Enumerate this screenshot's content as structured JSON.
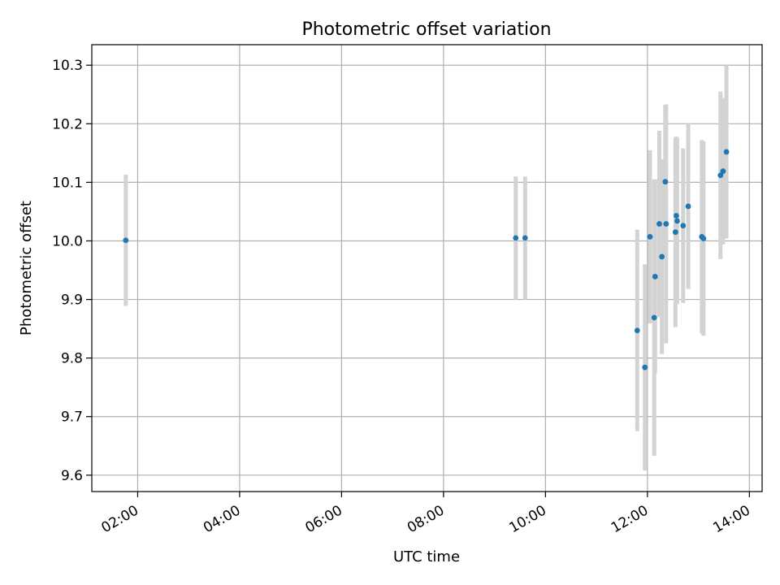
{
  "chart_data": {
    "type": "scatter",
    "title": "Photometric offset variation",
    "xlabel": "UTC time",
    "ylabel": "Photometric offset",
    "xlim": [
      "01:06",
      "14:15"
    ],
    "ylim": [
      9.572,
      10.335
    ],
    "x_ticks": [
      "02:00",
      "04:00",
      "06:00",
      "08:00",
      "10:00",
      "12:00",
      "14:00"
    ],
    "y_ticks": [
      "9.6",
      "9.7",
      "9.8",
      "9.9",
      "10.0",
      "10.1",
      "10.2",
      "10.3"
    ],
    "grid": true,
    "colors": {
      "points": "#1f77b4",
      "errorbars": "#d3d3d3",
      "grid": "#b0b0b0"
    },
    "points": [
      {
        "x": "01:46",
        "y": 10.001,
        "err": 0.112
      },
      {
        "x": "09:25",
        "y": 10.005,
        "err": 0.105
      },
      {
        "x": "09:36",
        "y": 10.005,
        "err": 0.105
      },
      {
        "x": "11:48",
        "y": 9.847,
        "err": 0.172
      },
      {
        "x": "11:57",
        "y": 9.784,
        "err": 0.176
      },
      {
        "x": "12:03",
        "y": 10.007,
        "err": 0.148
      },
      {
        "x": "12:08",
        "y": 9.869,
        "err": 0.236
      },
      {
        "x": "12:09",
        "y": 9.939,
        "err": 0.166
      },
      {
        "x": "12:14",
        "y": 10.029,
        "err": 0.159
      },
      {
        "x": "12:17",
        "y": 9.973,
        "err": 0.166
      },
      {
        "x": "12:21",
        "y": 10.101,
        "err": 0.131
      },
      {
        "x": "12:22",
        "y": 10.029,
        "err": 0.204
      },
      {
        "x": "12:33",
        "y": 10.015,
        "err": 0.162
      },
      {
        "x": "12:34",
        "y": 10.043,
        "err": 0.135
      },
      {
        "x": "12:35",
        "y": 10.034,
        "err": 0.142
      },
      {
        "x": "12:42",
        "y": 10.026,
        "err": 0.132
      },
      {
        "x": "12:48",
        "y": 10.059,
        "err": 0.141
      },
      {
        "x": "13:04",
        "y": 10.007,
        "err": 0.165
      },
      {
        "x": "13:06",
        "y": 10.004,
        "err": 0.166
      },
      {
        "x": "13:26",
        "y": 10.112,
        "err": 0.143
      },
      {
        "x": "13:29",
        "y": 10.119,
        "err": 0.125
      },
      {
        "x": "13:33",
        "y": 10.152,
        "err": 0.148
      }
    ]
  }
}
